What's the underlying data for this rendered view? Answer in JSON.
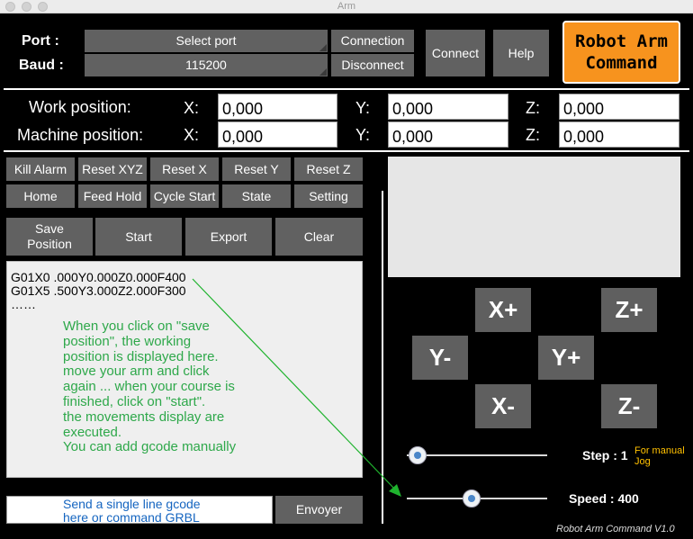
{
  "window": {
    "title": "Arm"
  },
  "header": {
    "port_label": "Port :",
    "baud_label": "Baud :",
    "port_select": "Select port",
    "baud_select": "115200",
    "connection_btn": "Connection",
    "disconnect_btn": "Disconnect",
    "connect_btn": "Connect",
    "help_btn": "Help",
    "logo_line1": "Robot Arm",
    "logo_line2": "Command"
  },
  "positions": {
    "work_label": "Work position:",
    "machine_label": "Machine position:",
    "x_label": "X:",
    "y_label": "Y:",
    "z_label": "Z:",
    "work": {
      "x": "0,000",
      "y": "0,000",
      "z": "0,000"
    },
    "machine": {
      "x": "0,000",
      "y": "0,000",
      "z": "0,000"
    }
  },
  "controls": {
    "row1": [
      "Kill Alarm",
      "Reset XYZ",
      "Reset X",
      "Reset Y",
      "Reset Z"
    ],
    "row2": [
      "Home",
      "Feed Hold",
      "Cycle Start",
      "State",
      "Setting"
    ],
    "save_line1": "Save",
    "save_line2": "Position",
    "start": "Start",
    "export": "Export",
    "clear": "Clear"
  },
  "gcode": {
    "lines": [
      "G01X0  .000Y0.000Z0.000F400",
      "G01X5  .500Y3.000Z2.000F300",
      "……"
    ],
    "help_lines": [
      "When you click on \"save",
      "position\", the working",
      "position is displayed here.",
      "move your arm and click",
      "again ... when your course is",
      "finished, click on \"start\".",
      "the movements display are",
      "executed.",
      "You can add gcode manually"
    ]
  },
  "command": {
    "placeholder_line1": "Send a single line gcode",
    "placeholder_line2": "here or command GRBL",
    "send_btn": "Envoyer"
  },
  "jog": {
    "x_plus": "X+",
    "x_minus": "X-",
    "y_plus": "Y+",
    "y_minus": "Y-",
    "z_plus": "Z+",
    "z_minus": "Z-"
  },
  "sliders": {
    "step_label": "Step : 1",
    "step_note_line1": "For manual",
    "step_note_line2": "Jog",
    "step_level": 0.08,
    "speed_label": "Speed : 400",
    "speed_level": 0.46
  },
  "footer": {
    "version": "Robot Arm Command V1.0"
  },
  "colors": {
    "logo_bg": "#f7931e",
    "help_text": "#2ea84a",
    "placeholder": "#1565c0",
    "note": "#ffc000",
    "arrow": "#1fb32e"
  }
}
